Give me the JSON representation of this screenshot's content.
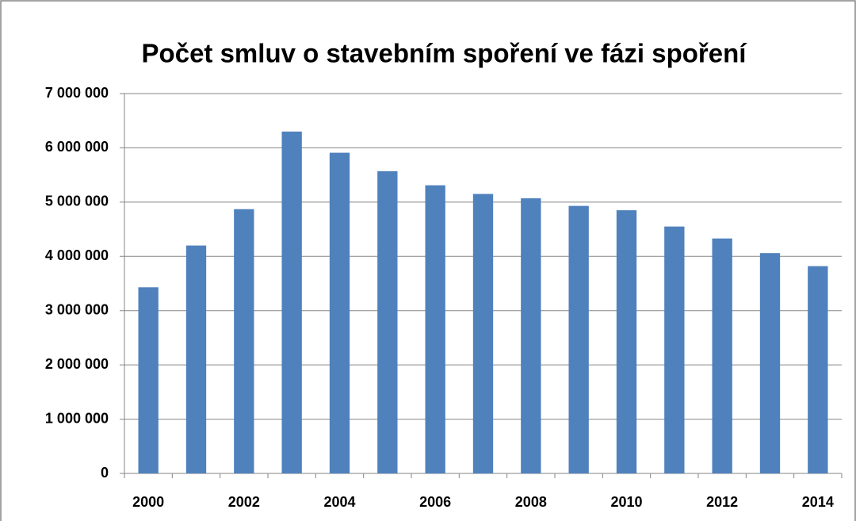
{
  "chart_data": {
    "type": "bar",
    "title": "Počet smluv o stavebním spoření ve fázi spoření",
    "categories": [
      "2000",
      null,
      "2002",
      null,
      "2004",
      null,
      "2006",
      null,
      "2008",
      null,
      "2010",
      null,
      "2012",
      null,
      "2014"
    ],
    "values": [
      3430000,
      4200000,
      4870000,
      6300000,
      5910000,
      5570000,
      5310000,
      5150000,
      5070000,
      4930000,
      4850000,
      4550000,
      4330000,
      4060000,
      3820000
    ],
    "color": "#4f81bd",
    "ylim": [
      0,
      7000000
    ],
    "yticks": [
      0,
      {
        "value": 1000000,
        "label": "1 000 000"
      },
      {
        "value": 2000000,
        "label": "2 000 000"
      },
      {
        "value": 3000000,
        "label": "3 000 000"
      },
      {
        "value": 4000000,
        "label": "4 000 000"
      },
      {
        "value": 5000000,
        "label": "5 000 000"
      },
      {
        "value": 6000000,
        "label": "6 000 000"
      },
      {
        "value": 7000000,
        "label": "7 000 000"
      }
    ],
    "grid": true
  }
}
